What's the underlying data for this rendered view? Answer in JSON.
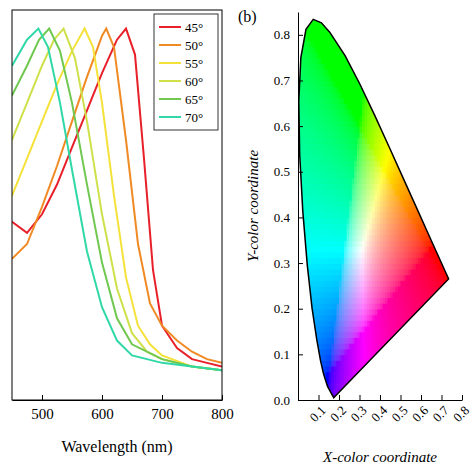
{
  "chart_data": [
    {
      "type": "line",
      "xlabel": "Wavelength (nm)",
      "xlim": [
        450,
        800
      ],
      "xticks": [
        500,
        600,
        700,
        800
      ],
      "ylim": [
        0,
        1.05
      ],
      "tick_labels": "x",
      "grid": false,
      "legend": "top-right",
      "series": [
        {
          "name": "45°",
          "color": "#e8202a",
          "x": [
            450,
            475,
            500,
            525,
            550,
            575,
            600,
            625,
            640,
            655,
            670,
            685,
            700,
            725,
            750,
            775,
            800
          ],
          "values": [
            0.48,
            0.45,
            0.5,
            0.58,
            0.68,
            0.78,
            0.88,
            0.97,
            1.0,
            0.93,
            0.65,
            0.35,
            0.2,
            0.14,
            0.11,
            0.1,
            0.09
          ]
        },
        {
          "name": "50°",
          "color": "#f08a24",
          "x": [
            450,
            475,
            500,
            525,
            550,
            575,
            600,
            607,
            620,
            640,
            660,
            680,
            700,
            725,
            750,
            775,
            800
          ],
          "values": [
            0.38,
            0.42,
            0.52,
            0.63,
            0.75,
            0.87,
            0.98,
            1.0,
            0.95,
            0.7,
            0.42,
            0.26,
            0.2,
            0.16,
            0.13,
            0.11,
            0.1
          ]
        },
        {
          "name": "55°",
          "color": "#f4e23a",
          "x": [
            450,
            475,
            500,
            525,
            550,
            571,
            585,
            600,
            620,
            640,
            660,
            680,
            700,
            750,
            800
          ],
          "values": [
            0.55,
            0.65,
            0.75,
            0.85,
            0.94,
            1.0,
            0.95,
            0.8,
            0.55,
            0.33,
            0.2,
            0.15,
            0.12,
            0.09,
            0.08
          ]
        },
        {
          "name": "60°",
          "color": "#cfe04a",
          "x": [
            450,
            475,
            500,
            520,
            536,
            555,
            575,
            600,
            625,
            650,
            675,
            700,
            750,
            800
          ],
          "values": [
            0.7,
            0.8,
            0.9,
            0.97,
            1.0,
            0.92,
            0.75,
            0.5,
            0.3,
            0.18,
            0.13,
            0.11,
            0.09,
            0.08
          ]
        },
        {
          "name": "65°",
          "color": "#70c850",
          "x": [
            450,
            475,
            495,
            512,
            530,
            550,
            575,
            600,
            625,
            650,
            700,
            750,
            800
          ],
          "values": [
            0.82,
            0.9,
            0.97,
            1.0,
            0.94,
            0.8,
            0.58,
            0.37,
            0.22,
            0.15,
            0.11,
            0.09,
            0.08
          ]
        },
        {
          "name": "70°",
          "color": "#30d8a8",
          "x": [
            450,
            475,
            494,
            510,
            530,
            550,
            575,
            600,
            625,
            650,
            700,
            750,
            800
          ],
          "values": [
            0.9,
            0.97,
            1.0,
            0.95,
            0.8,
            0.62,
            0.4,
            0.25,
            0.16,
            0.12,
            0.1,
            0.09,
            0.08
          ]
        }
      ]
    },
    {
      "type": "chromaticity",
      "panel_label": "(b)",
      "xlabel": "X-color coordinate",
      "ylabel": "Y-color coordinate",
      "xlim": [
        0,
        0.8
      ],
      "xticks": [
        0.1,
        0.2,
        0.3,
        0.4,
        0.5,
        0.6,
        0.7,
        0.8
      ],
      "ylim": [
        0,
        0.85
      ],
      "yticks": [
        {
          "value": 0,
          "label": "0.0"
        },
        0.1,
        0.2,
        0.3,
        0.4,
        0.5,
        0.6,
        0.7,
        0.8
      ],
      "grid": false,
      "locus": {
        "x": [
          0.1741,
          0.144,
          0.1241,
          0.1096,
          0.0913,
          0.0687,
          0.0454,
          0.0235,
          0.0082,
          0.0039,
          0.0139,
          0.0389,
          0.0743,
          0.1142,
          0.1547,
          0.2296,
          0.3016,
          0.3731,
          0.4441,
          0.5125,
          0.5752,
          0.627,
          0.6915,
          0.719,
          0.7347
        ],
        "y": [
          0.005,
          0.0297,
          0.0578,
          0.0868,
          0.1327,
          0.2007,
          0.295,
          0.4127,
          0.5384,
          0.6548,
          0.7502,
          0.812,
          0.8338,
          0.8262,
          0.8059,
          0.7543,
          0.6923,
          0.6245,
          0.5547,
          0.4866,
          0.4242,
          0.3725,
          0.3083,
          0.2809,
          0.2653
        ]
      }
    }
  ]
}
